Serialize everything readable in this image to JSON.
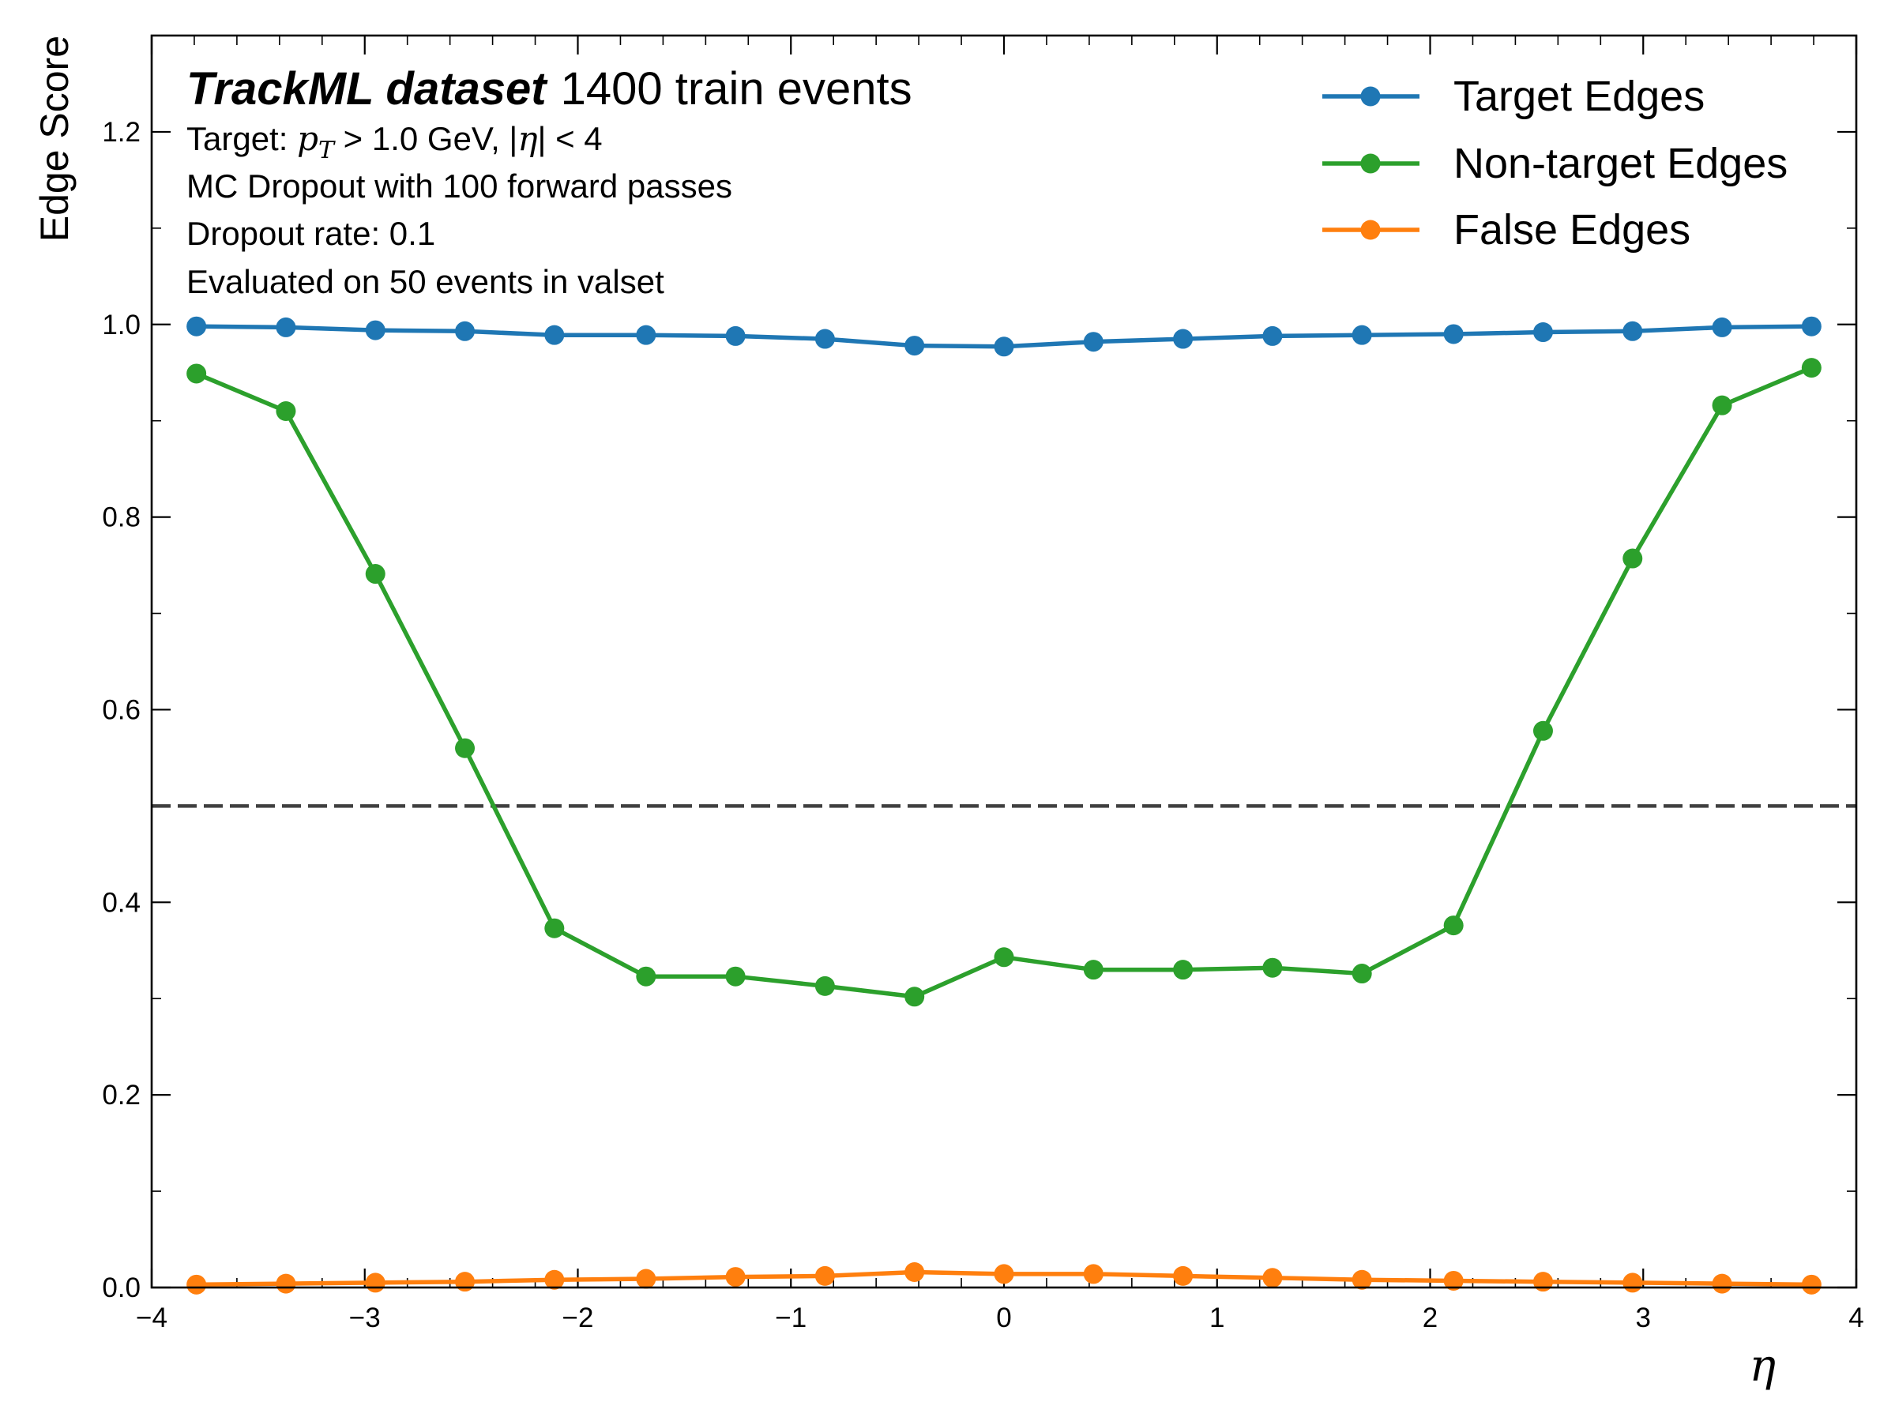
{
  "chart_data": {
    "type": "line",
    "xlabel": "η",
    "ylabel": "Edge Score",
    "xlim": [
      -4,
      4
    ],
    "ylim": [
      0,
      1.3
    ],
    "xticks": [
      -4,
      -3,
      -2,
      -1,
      0,
      1,
      2,
      3,
      4
    ],
    "xtick_labels": [
      "−4",
      "−3",
      "−2",
      "−1",
      "0",
      "1",
      "2",
      "3",
      "4"
    ],
    "yticks": [
      0.0,
      0.2,
      0.4,
      0.6,
      0.8,
      1.0,
      1.2
    ],
    "ytick_labels": [
      "0.0",
      "0.2",
      "0.4",
      "0.6",
      "0.8",
      "1.0",
      "1.2"
    ],
    "grid": false,
    "legend_position": "top-right",
    "threshold_line": {
      "y": 0.5,
      "style": "dashed",
      "color": "#404040"
    },
    "annotation": {
      "title_bold": "TrackML dataset",
      "title_rest": "1400 train events",
      "line1_prefix": "Target: ",
      "line1_pt": "p",
      "line1_pt_sub": "T",
      "line1_mid": " > 1.0 GeV, |",
      "line1_eta": "η",
      "line1_suffix": "| < 4",
      "line2": "MC Dropout with 100 forward passes",
      "line3": "Dropout rate: 0.1",
      "line4": "Evaluated on 50 events in valset"
    },
    "x": [
      -3.79,
      -3.37,
      -2.95,
      -2.53,
      -2.11,
      -1.68,
      -1.26,
      -0.84,
      -0.42,
      0.0,
      0.42,
      0.84,
      1.26,
      1.68,
      2.11,
      2.53,
      2.95,
      3.37,
      3.79
    ],
    "series": [
      {
        "name": "Target Edges",
        "color": "#1f77b4",
        "values": [
          0.998,
          0.997,
          0.994,
          0.993,
          0.989,
          0.989,
          0.988,
          0.985,
          0.978,
          0.977,
          0.982,
          0.985,
          0.988,
          0.989,
          0.99,
          0.992,
          0.993,
          0.997,
          0.998
        ]
      },
      {
        "name": "Non-target Edges",
        "color": "#2ca02c",
        "values": [
          0.949,
          0.91,
          0.741,
          0.56,
          0.373,
          0.323,
          0.323,
          0.313,
          0.302,
          0.343,
          0.33,
          0.33,
          0.332,
          0.326,
          0.376,
          0.578,
          0.757,
          0.916,
          0.955
        ]
      },
      {
        "name": "False Edges",
        "color": "#ff7f0e",
        "values": [
          0.003,
          0.004,
          0.005,
          0.006,
          0.008,
          0.009,
          0.011,
          0.012,
          0.016,
          0.014,
          0.014,
          0.012,
          0.01,
          0.008,
          0.007,
          0.006,
          0.005,
          0.004,
          0.003
        ]
      }
    ]
  }
}
